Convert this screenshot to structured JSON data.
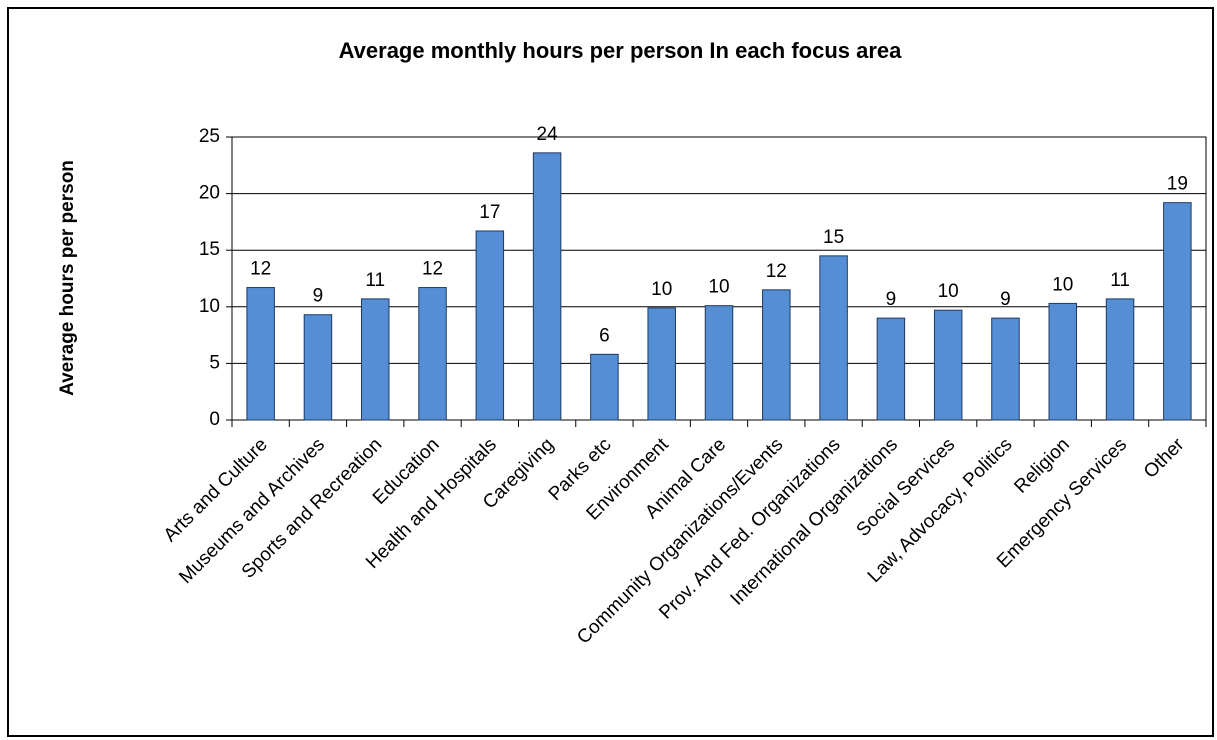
{
  "chart_data": {
    "type": "bar",
    "title": "Average monthly hours per person In each focus area",
    "y_label": "Average hours per person",
    "categories": [
      "Arts and Culture",
      "Museums and Archives",
      "Sports and Recreation",
      "Education",
      "Health and Hospitals",
      "Caregiving",
      "Parks etc",
      "Environment",
      "Animal Care",
      "Community Organizations/Events",
      "Prov. And Fed. Organizations",
      "International Organizations",
      "Social Services",
      "Law, Advocacy, Politics",
      "Religion",
      "Emergency Services",
      "Other"
    ],
    "values": [
      11.7,
      9.3,
      10.7,
      11.7,
      16.7,
      23.6,
      5.8,
      9.9,
      10.1,
      11.5,
      14.5,
      9.0,
      9.7,
      9.0,
      10.3,
      10.7,
      19.2
    ],
    "value_labels": [
      "12",
      "9",
      "11",
      "12",
      "17",
      "24",
      "6",
      "10",
      "10",
      "12",
      "15",
      "9",
      "10",
      "9",
      "10",
      "11",
      "19"
    ],
    "color": "#558ed5",
    "ylim": [
      0,
      25
    ],
    "yticks": [
      0,
      5,
      10,
      15,
      20,
      25
    ],
    "grid": true
  }
}
